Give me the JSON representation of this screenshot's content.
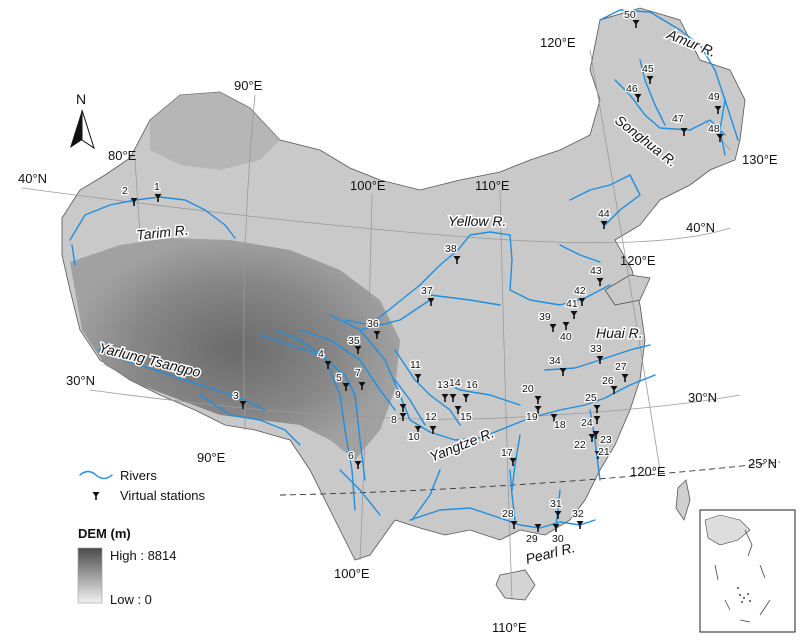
{
  "north_arrow": {
    "label": "N"
  },
  "coordinates": [
    {
      "id": "lon-90-top",
      "text": "90°E"
    },
    {
      "id": "lon-80",
      "text": "80°E"
    },
    {
      "id": "lat-40-left",
      "text": "40°N"
    },
    {
      "id": "lon-100-top",
      "text": "100°E"
    },
    {
      "id": "lon-110-top",
      "text": "110°E"
    },
    {
      "id": "lon-120-top",
      "text": "120°E"
    },
    {
      "id": "lon-130",
      "text": "130°E"
    },
    {
      "id": "lat-40-right",
      "text": "40°N"
    },
    {
      "id": "lon-120-mid",
      "text": "120°E"
    },
    {
      "id": "lat-30-left",
      "text": "30°N"
    },
    {
      "id": "lon-90-bottom",
      "text": "90°E"
    },
    {
      "id": "lat-30-right",
      "text": "30°N"
    },
    {
      "id": "lat-25",
      "text": "25°N"
    },
    {
      "id": "lon-120-bottom",
      "text": "120°E"
    },
    {
      "id": "lon-100-bottom",
      "text": "100°E"
    },
    {
      "id": "lon-110-bottom",
      "text": "110°E"
    }
  ],
  "river_labels": [
    {
      "id": "amur",
      "text": "Amur R."
    },
    {
      "id": "songhua",
      "text": "Songhua R."
    },
    {
      "id": "yellow",
      "text": "Yellow R."
    },
    {
      "id": "tarim",
      "text": "Tarim R."
    },
    {
      "id": "yarlung",
      "text": "Yarlung Tsangpo"
    },
    {
      "id": "huai",
      "text": "Huai R."
    },
    {
      "id": "yangtze",
      "text": "Yangtze R."
    },
    {
      "id": "pearl",
      "text": "Pearl R."
    }
  ],
  "stations": [
    "1",
    "2",
    "3",
    "4",
    "5",
    "6",
    "7",
    "8",
    "9",
    "10",
    "11",
    "12",
    "13",
    "14",
    "15",
    "16",
    "17",
    "18",
    "19",
    "20",
    "21",
    "22",
    "23",
    "24",
    "25",
    "26",
    "27",
    "28",
    "29",
    "30",
    "31",
    "32",
    "33",
    "34",
    "35",
    "36",
    "37",
    "38",
    "39",
    "40",
    "41",
    "42",
    "43",
    "44",
    "45",
    "46",
    "47",
    "48",
    "49",
    "50"
  ],
  "legend": {
    "rivers": "Rivers",
    "stations": "Virtual stations",
    "dem_title": "DEM (m)",
    "high": "High : 8814",
    "low": "Low : 0"
  },
  "colors": {
    "river": "#1f8fe0",
    "station": "#111111"
  }
}
